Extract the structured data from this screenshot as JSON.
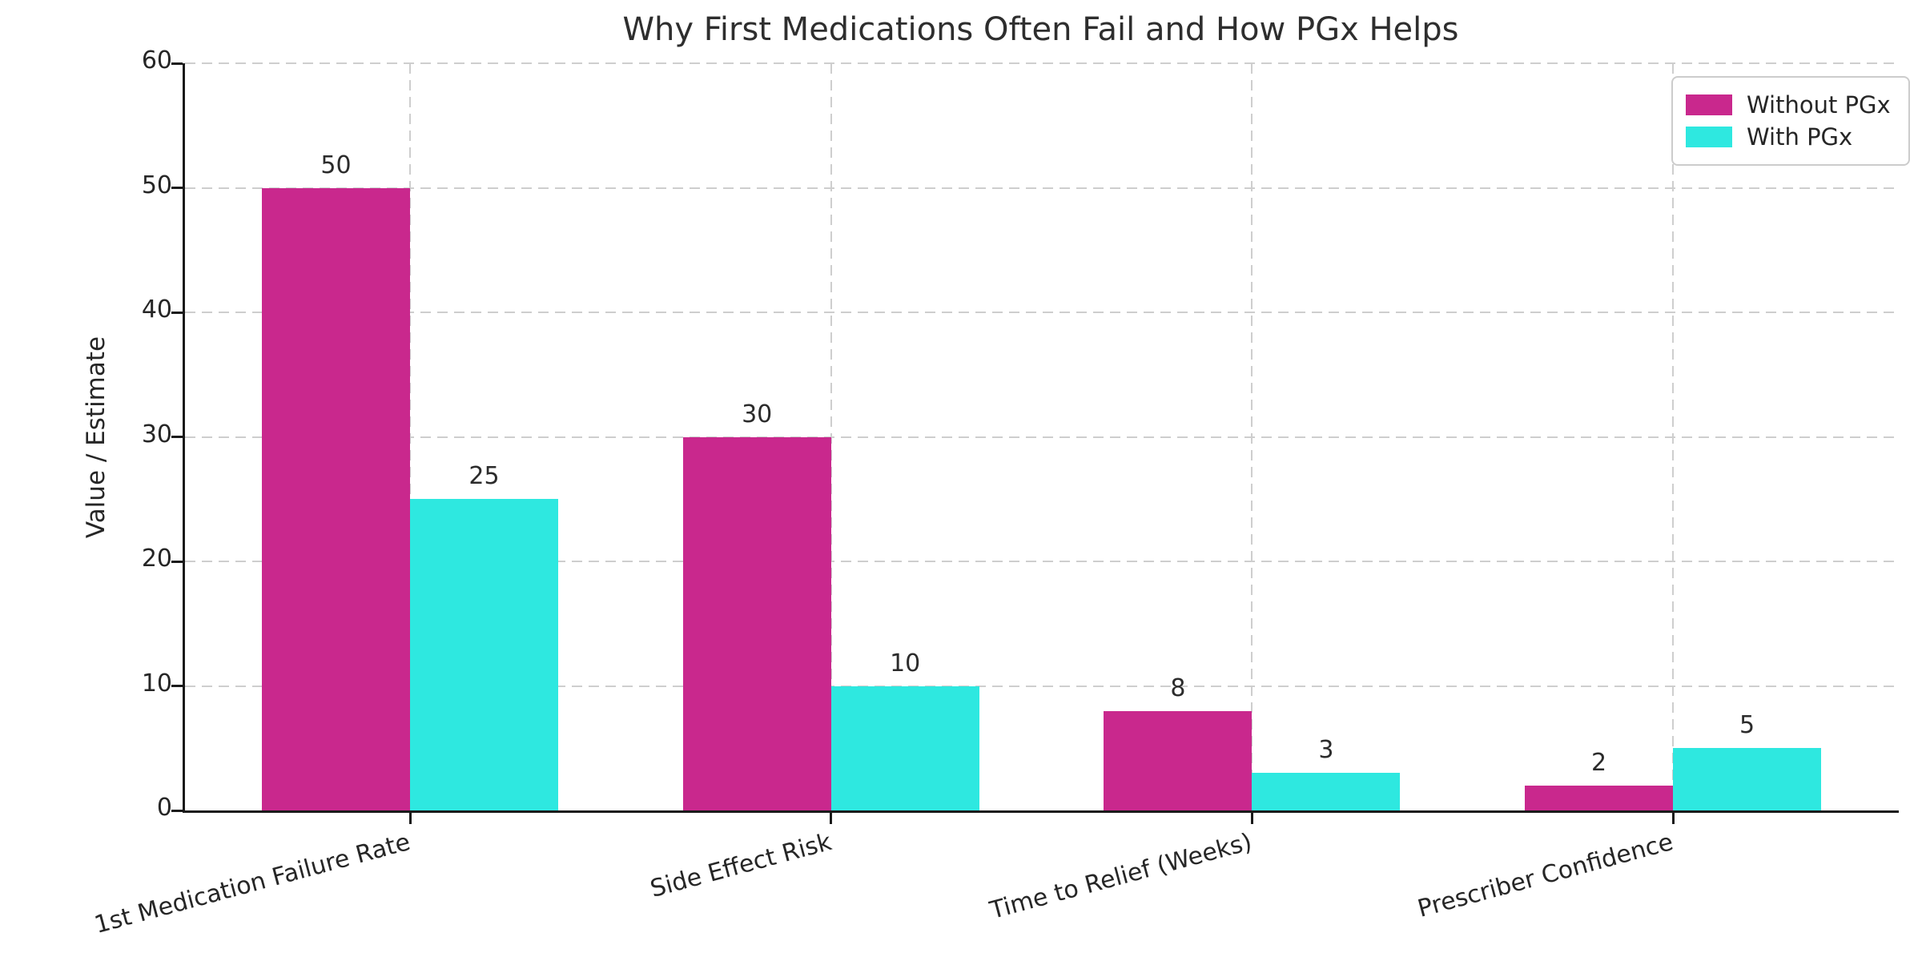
{
  "chart_data": {
    "type": "bar",
    "title": "Why First Medications Often Fail and How PGx Helps",
    "xlabel": "",
    "ylabel": "Value / Estimate",
    "categories": [
      "1st Medication Failure Rate",
      "Side Effect Risk",
      "Time to Relief (Weeks)",
      "Prescriber Confidence"
    ],
    "series": [
      {
        "name": "Without PGx",
        "color": "#C9288D",
        "values": [
          50,
          30,
          8,
          2
        ]
      },
      {
        "name": "With PGx",
        "color": "#2EE8E0",
        "values": [
          25,
          10,
          3,
          5
        ]
      }
    ],
    "ylim": [
      0,
      60
    ],
    "yticks": [
      0,
      10,
      20,
      30,
      40,
      50,
      60
    ],
    "bar_value_labels_shown": true,
    "grid": "dashed, horizontal at yticks and vertical at category centers",
    "legend_position": "upper right",
    "axis_color": "#1a1a1a",
    "gridline_color": "#cecece"
  }
}
